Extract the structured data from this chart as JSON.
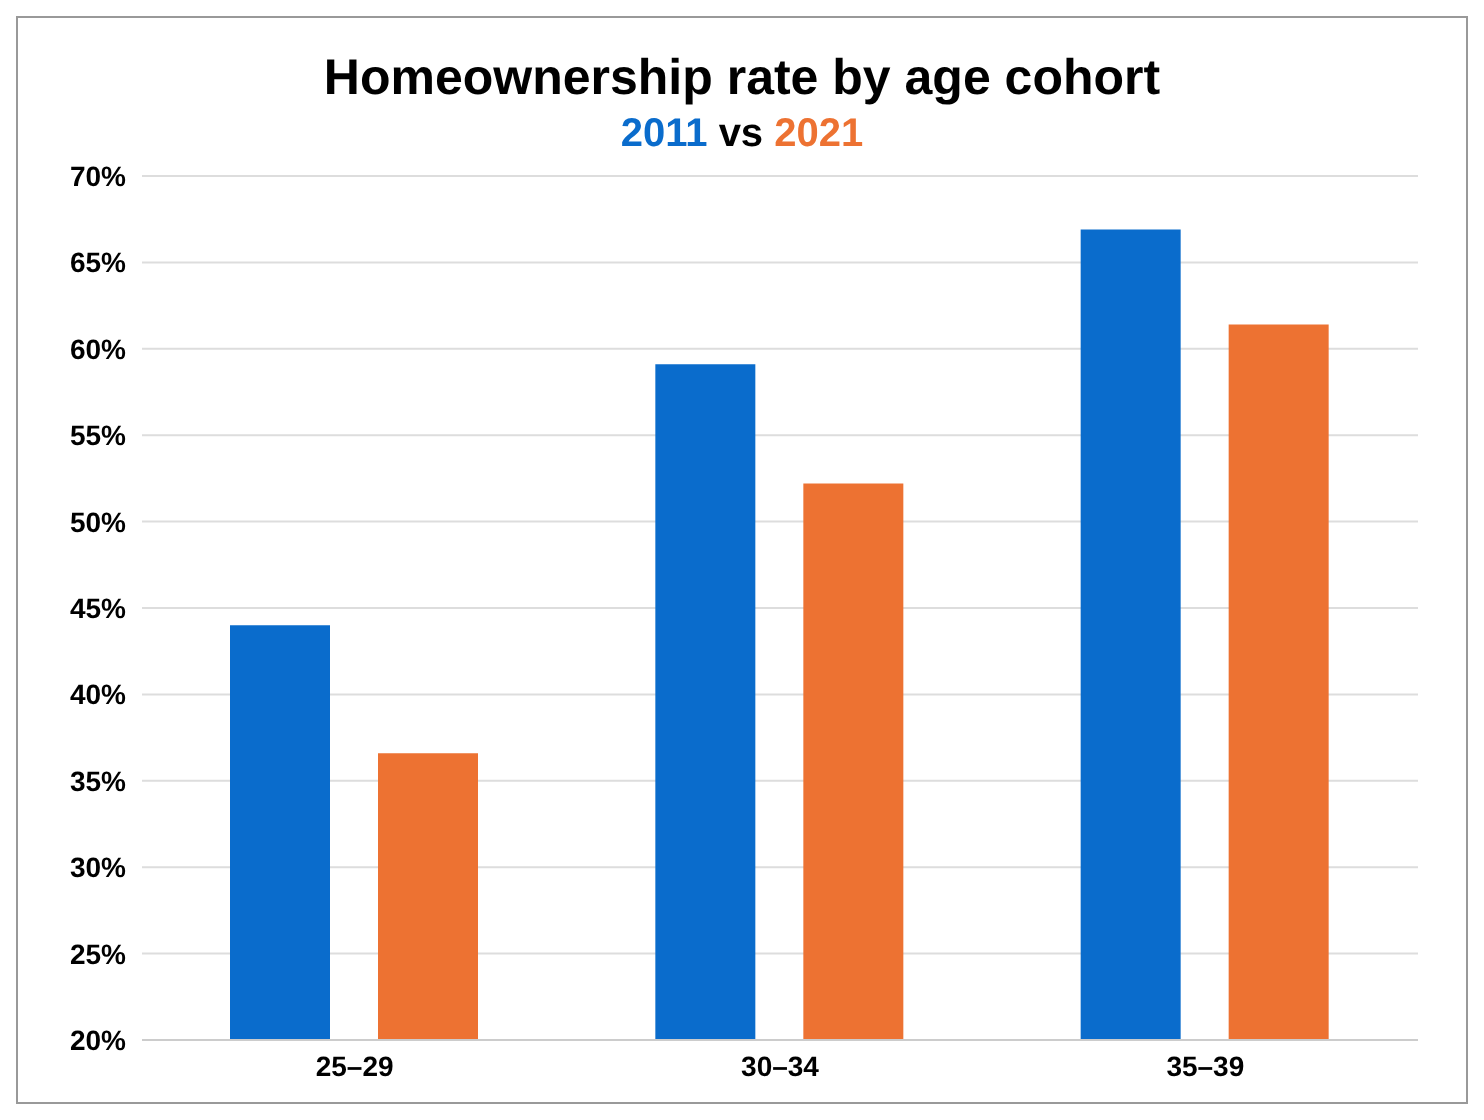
{
  "chart_data": {
    "type": "bar",
    "title": "Homeownership rate by age cohort",
    "subtitle": "vs",
    "categories": [
      "25–29",
      "30–34",
      "35–39"
    ],
    "series": [
      {
        "name": "2011",
        "color": "#0a6ccc",
        "values": [
          44.0,
          59.1,
          66.9
        ]
      },
      {
        "name": "2021",
        "color": "#ed7232",
        "values": [
          36.6,
          52.2,
          61.4
        ]
      }
    ],
    "ylim": [
      20,
      70
    ],
    "yticks": [
      {
        "value": 20,
        "label": "20%"
      },
      {
        "value": 25,
        "label": "25%"
      },
      {
        "value": 30,
        "label": "30%"
      },
      {
        "value": 35,
        "label": "35%"
      },
      {
        "value": 40,
        "label": "40%"
      },
      {
        "value": 45,
        "label": "45%"
      },
      {
        "value": 50,
        "label": "50%"
      },
      {
        "value": 55,
        "label": "55%"
      },
      {
        "value": 60,
        "label": "60%"
      },
      {
        "value": 65,
        "label": "65%"
      },
      {
        "value": 70,
        "label": "70%"
      }
    ],
    "grid": "y",
    "legend": "top"
  }
}
